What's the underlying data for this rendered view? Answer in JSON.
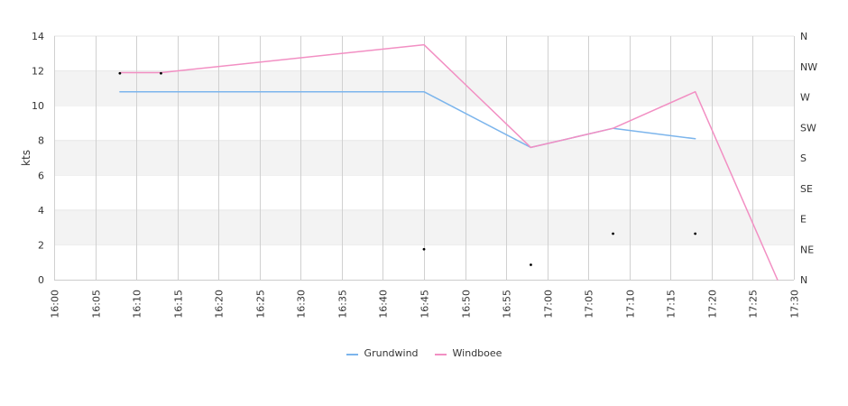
{
  "chart_data": {
    "type": "line",
    "ylabel": "kts",
    "ylim": [
      0,
      14
    ],
    "y_ticks": [
      "0",
      "2",
      "4",
      "6",
      "8",
      "10",
      "12",
      "14"
    ],
    "x_ticks": [
      "16:00",
      "16:05",
      "16:10",
      "16:15",
      "16:20",
      "16:25",
      "16:30",
      "16:35",
      "16:40",
      "16:45",
      "16:50",
      "16:55",
      "17:00",
      "17:05",
      "17:10",
      "17:15",
      "17:20",
      "17:25",
      "17:30"
    ],
    "xlim": [
      "16:00",
      "17:30"
    ],
    "y2_ticks": [
      "N",
      "NE",
      "E",
      "SE",
      "S",
      "SW",
      "W",
      "NW",
      "N"
    ],
    "y2lim_degrees": [
      0,
      360
    ],
    "grid": "vertical lines; alternating horizontal bands",
    "series": [
      {
        "name": "Grundwind",
        "color": "#7cb5ec",
        "points": [
          {
            "x": "16:08",
            "y": 10.8
          },
          {
            "x": "16:13",
            "y": 10.8
          },
          {
            "x": "16:45",
            "y": 10.8
          },
          {
            "x": "16:58",
            "y": 7.6
          },
          {
            "x": "17:08",
            "y": 8.7
          },
          {
            "x": "17:18",
            "y": 8.1
          }
        ]
      },
      {
        "name": "Windboee",
        "color": "#f28fc3",
        "points": [
          {
            "x": "16:08",
            "y": 11.9
          },
          {
            "x": "16:13",
            "y": 11.9
          },
          {
            "x": "16:45",
            "y": 13.5
          },
          {
            "x": "16:58",
            "y": 7.6
          },
          {
            "x": "17:08",
            "y": 8.7
          },
          {
            "x": "17:18",
            "y": 10.8
          },
          {
            "x": "17:28",
            "y": 0
          }
        ]
      },
      {
        "type": "scatter",
        "axis": "direction",
        "color": "#000000",
        "points": [
          {
            "x": "16:08",
            "y": 305
          },
          {
            "x": "16:13",
            "y": 305
          },
          {
            "x": "16:45",
            "y": 45
          },
          {
            "x": "16:58",
            "y": 22
          },
          {
            "x": "17:08",
            "y": 68
          },
          {
            "x": "17:18",
            "y": 68
          }
        ]
      }
    ],
    "legend": {
      "position": "bottom-center",
      "items": [
        {
          "label": "Grundwind",
          "color": "#7cb5ec"
        },
        {
          "label": "Windboee",
          "color": "#f28fc3"
        }
      ]
    }
  }
}
